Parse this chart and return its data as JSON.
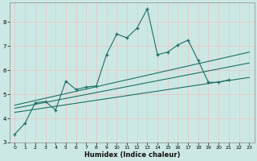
{
  "title": "",
  "xlabel": "Humidex (Indice chaleur)",
  "ylabel": "",
  "xlim": [
    -0.5,
    23.5
  ],
  "ylim": [
    3,
    8.8
  ],
  "xticks": [
    0,
    1,
    2,
    3,
    4,
    5,
    6,
    7,
    8,
    9,
    10,
    11,
    12,
    13,
    14,
    15,
    16,
    17,
    18,
    19,
    20,
    21,
    22,
    23
  ],
  "yticks": [
    3,
    4,
    5,
    6,
    7,
    8
  ],
  "background_color": "#cce8e4",
  "grid_color": "#e8c8c8",
  "line_color": "#1e6e65",
  "jagged_line": {
    "x": [
      0,
      1,
      2,
      3,
      4,
      5,
      6,
      7,
      8,
      9,
      10,
      11,
      12,
      13,
      14,
      15,
      16,
      17,
      18,
      19,
      20,
      21
    ],
    "y": [
      3.35,
      3.8,
      4.65,
      4.7,
      4.35,
      5.55,
      5.2,
      5.3,
      5.35,
      6.65,
      7.5,
      7.35,
      7.75,
      8.55,
      6.65,
      6.75,
      7.05,
      7.25,
      6.4,
      5.5,
      5.5,
      5.6
    ]
  },
  "straight_lines": [
    {
      "x": [
        0,
        23
      ],
      "y": [
        4.55,
        6.75
      ]
    },
    {
      "x": [
        0,
        23
      ],
      "y": [
        4.42,
        6.3
      ]
    },
    {
      "x": [
        0,
        23
      ],
      "y": [
        4.25,
        5.7
      ]
    }
  ]
}
